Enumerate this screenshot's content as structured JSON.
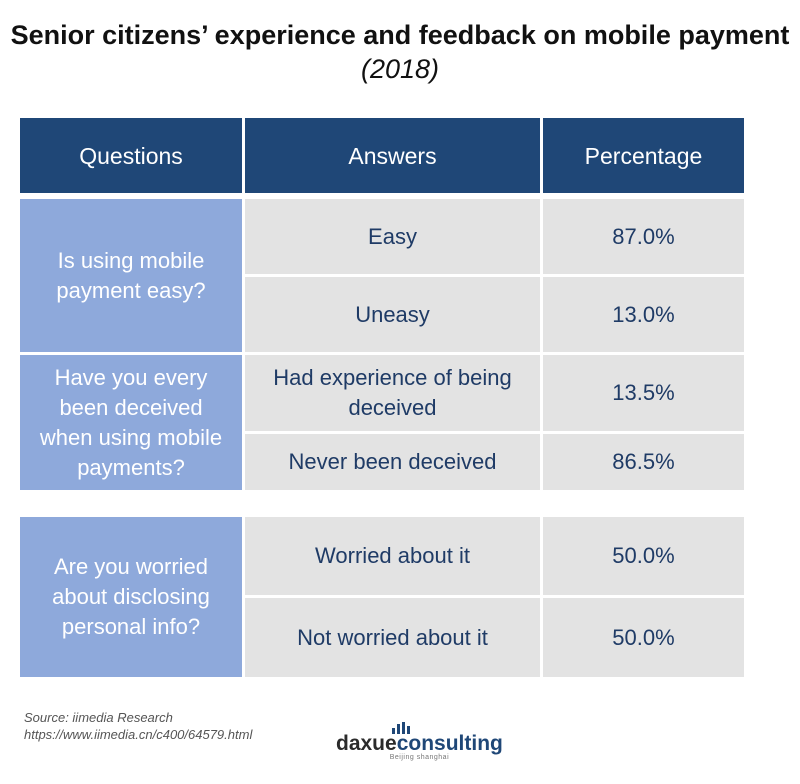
{
  "title": {
    "main": "Senior citizens’ experience and feedback on mobile payment",
    "year": "(2018)"
  },
  "table": {
    "headers": [
      "Questions",
      "Answers",
      "Percentage"
    ],
    "groups": [
      {
        "question": "Is using mobile payment easy?",
        "rows": [
          {
            "answer": "Easy",
            "percentage": "87.0%"
          },
          {
            "answer": "Uneasy",
            "percentage": "13.0%"
          }
        ]
      },
      {
        "question": "Have you every been deceived when using mobile payments?",
        "rows": [
          {
            "answer": "Had experience of being deceived",
            "percentage": "13.5%"
          },
          {
            "answer": "Never been deceived",
            "percentage": "86.5%"
          }
        ]
      },
      {
        "question": "Are you worried about disclosing personal info?",
        "rows": [
          {
            "answer": "Worried about it",
            "percentage": "50.0%"
          },
          {
            "answer": "Not worried about it",
            "percentage": "50.0%"
          }
        ]
      }
    ]
  },
  "source": {
    "line1": "Source: iimedia Research",
    "line2": "https://www.iimedia.cn/c400/64579.html"
  },
  "logo": {
    "part1": "daxue",
    "part2": "consulting",
    "tagline": "Beijing shanghai"
  },
  "colors": {
    "header_bg": "#1f4777",
    "question_bg": "#8ea9db",
    "answer_bg": "#e3e3e3",
    "answer_text": "#1f3b66"
  }
}
